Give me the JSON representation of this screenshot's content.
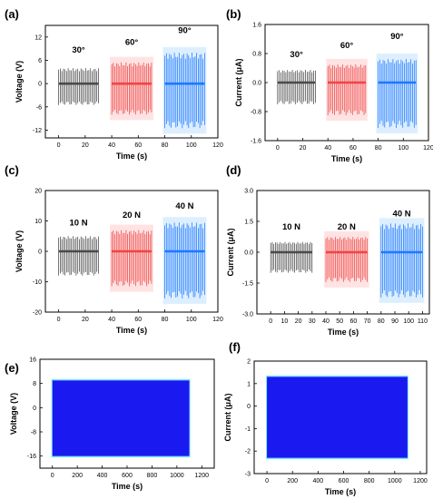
{
  "colors": {
    "gray": "#4a4a4a",
    "red": "#ef4545",
    "blue": "#1e78ff",
    "dense_blue": "#1a1af0",
    "cyan_fringe": "#7fe6ff"
  },
  "chart_data": [
    {
      "panel": "(a)",
      "type": "line",
      "xlabel": "Time (s)",
      "ylabel": "Voltage (V)",
      "xlim": [
        -10,
        120
      ],
      "ylim": [
        -14,
        15
      ],
      "xticks": [
        0,
        20,
        40,
        60,
        80,
        100,
        120
      ],
      "yticks": [
        12,
        6,
        0,
        -6,
        -12
      ],
      "groups": [
        {
          "label": "30°",
          "color": "gray",
          "t_start": 0,
          "t_end": 30,
          "peak_pos": 4,
          "peak_neg": -5.5,
          "label_y": 8
        },
        {
          "label": "60°",
          "color": "red",
          "t_start": 40,
          "t_end": 70,
          "peak_pos": 5.5,
          "peak_neg": -8,
          "label_y": 10
        },
        {
          "label": "90°",
          "color": "blue",
          "t_start": 80,
          "t_end": 110,
          "peak_pos": 8,
          "peak_neg": -11.5,
          "label_y": 13
        }
      ]
    },
    {
      "panel": "(b)",
      "type": "line",
      "xlabel": "Time (s)",
      "ylabel": "Current (μA)",
      "xlim": [
        -10,
        120
      ],
      "ylim": [
        -1.6,
        1.6
      ],
      "xticks": [
        0,
        20,
        40,
        60,
        80,
        100,
        120
      ],
      "yticks": [
        1.6,
        0.8,
        0.0,
        -0.8,
        -1.6
      ],
      "groups": [
        {
          "label": "30°",
          "color": "gray",
          "t_start": 0,
          "t_end": 30,
          "peak_pos": 0.35,
          "peak_neg": -0.6,
          "label_y": 0.7
        },
        {
          "label": "60°",
          "color": "red",
          "t_start": 40,
          "t_end": 70,
          "peak_pos": 0.5,
          "peak_neg": -0.9,
          "label_y": 0.95
        },
        {
          "label": "90°",
          "color": "blue",
          "t_start": 80,
          "t_end": 110,
          "peak_pos": 0.65,
          "peak_neg": -1.25,
          "label_y": 1.2
        }
      ]
    },
    {
      "panel": "(c)",
      "type": "line",
      "xlabel": "Time (s)",
      "ylabel": "Voltage (V)",
      "xlim": [
        -10,
        120
      ],
      "ylim": [
        -20,
        20
      ],
      "xticks": [
        0,
        20,
        40,
        60,
        80,
        100,
        120
      ],
      "yticks": [
        20,
        10,
        0,
        -10,
        -20
      ],
      "groups": [
        {
          "label": "10 N",
          "color": "gray",
          "t_start": 0,
          "t_end": 30,
          "peak_pos": 5,
          "peak_neg": -8,
          "label_y": 8.5
        },
        {
          "label": "20 N",
          "color": "red",
          "t_start": 40,
          "t_end": 70,
          "peak_pos": 7,
          "peak_neg": -11.5,
          "label_y": 11
        },
        {
          "label": "40 N",
          "color": "blue",
          "t_start": 80,
          "t_end": 110,
          "peak_pos": 9.5,
          "peak_neg": -15.5,
          "label_y": 14
        }
      ]
    },
    {
      "panel": "(d)",
      "type": "line",
      "xlabel": "Time (s)",
      "ylabel": "Current (μA)",
      "xlim": [
        -10,
        115
      ],
      "ylim": [
        -3.0,
        3.0
      ],
      "xticks": [
        0,
        10,
        20,
        30,
        40,
        50,
        60,
        70,
        80,
        90,
        100,
        110
      ],
      "yticks": [
        3.0,
        1.5,
        0.0,
        -1.5,
        -3.0
      ],
      "groups": [
        {
          "label": "10 N",
          "color": "gray",
          "t_start": 0,
          "t_end": 30,
          "peak_pos": 0.5,
          "peak_neg": -1.0,
          "label_y": 1.1
        },
        {
          "label": "20 N",
          "color": "red",
          "t_start": 40,
          "t_end": 70,
          "peak_pos": 0.75,
          "peak_neg": -1.45,
          "label_y": 1.1
        },
        {
          "label": "40 N",
          "color": "blue",
          "t_start": 80,
          "t_end": 110,
          "peak_pos": 1.4,
          "peak_neg": -2.2,
          "label_y": 1.75
        }
      ]
    },
    {
      "panel": "(e)",
      "type": "line",
      "xlabel": "Time (s)",
      "ylabel": "Voltage (V)",
      "xlim": [
        -100,
        1300
      ],
      "ylim": [
        -20,
        16
      ],
      "xticks": [
        0,
        200,
        400,
        600,
        800,
        1000,
        1200
      ],
      "yticks": [
        16,
        8,
        0,
        -8,
        -16
      ],
      "groups": [
        {
          "label": "",
          "color": "dense_blue",
          "t_start": 0,
          "t_end": 1100,
          "peak_pos": 9,
          "peak_neg": -16
        }
      ]
    },
    {
      "panel": "(f)",
      "type": "line",
      "xlabel": "Time (s)",
      "ylabel": "Current (μA)",
      "xlim": [
        -100,
        1250
      ],
      "ylim": [
        -3,
        2
      ],
      "xticks": [
        0,
        200,
        400,
        600,
        800,
        1000,
        1200
      ],
      "yticks": [
        2,
        1,
        0,
        -1,
        -2,
        -3
      ],
      "groups": [
        {
          "label": "",
          "color": "dense_blue",
          "t_start": 0,
          "t_end": 1100,
          "peak_pos": 1.3,
          "peak_neg": -2.3
        }
      ]
    }
  ]
}
